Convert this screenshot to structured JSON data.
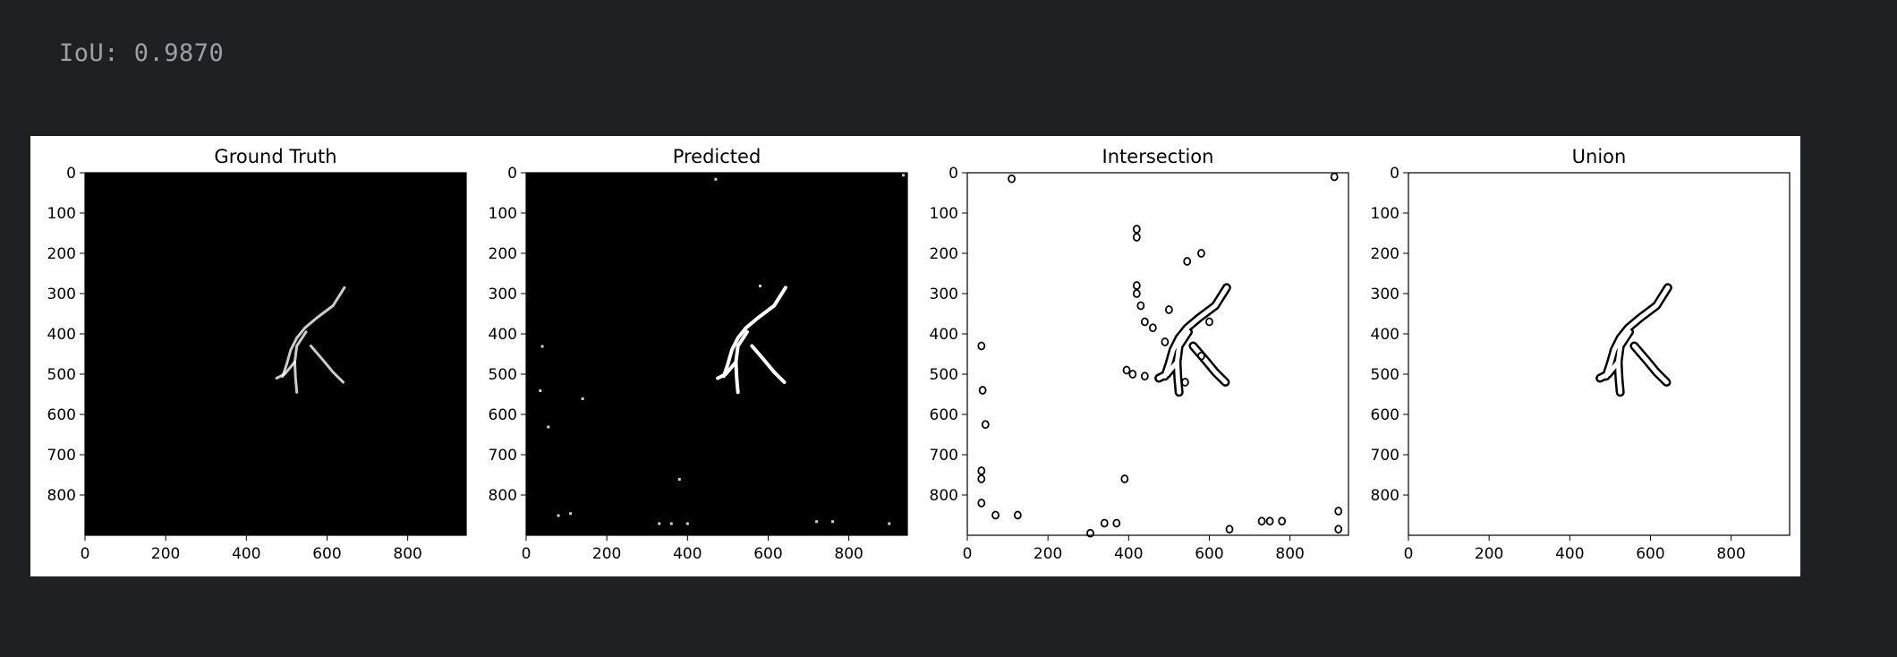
{
  "output": {
    "iou_text": "IoU: 0.9870"
  },
  "chart_data": [
    {
      "type": "image",
      "title": "Ground Truth",
      "xticks": [
        "0",
        "200",
        "400",
        "600",
        "800"
      ],
      "yticks": [
        "0",
        "100",
        "200",
        "300",
        "400",
        "500",
        "600",
        "700",
        "800"
      ],
      "xlim": [
        0,
        945
      ],
      "ylim": [
        900,
        0
      ],
      "colormap": "gray",
      "background": "#000000",
      "foreground": "#ffffff"
    },
    {
      "type": "image",
      "title": "Predicted",
      "xticks": [
        "0",
        "200",
        "400",
        "600",
        "800"
      ],
      "yticks": [
        "0",
        "100",
        "200",
        "300",
        "400",
        "500",
        "600",
        "700",
        "800"
      ],
      "xlim": [
        0,
        945
      ],
      "ylim": [
        900,
        0
      ],
      "colormap": "gray",
      "background": "#000000",
      "foreground": "#ffffff"
    },
    {
      "type": "image",
      "title": "Intersection",
      "xticks": [
        "0",
        "200",
        "400",
        "600",
        "800"
      ],
      "yticks": [
        "0",
        "100",
        "200",
        "300",
        "400",
        "500",
        "600",
        "700",
        "800"
      ],
      "xlim": [
        0,
        945
      ],
      "ylim": [
        900,
        0
      ],
      "colormap": "gray_contour",
      "background": "#ffffff",
      "foreground": "#000000"
    },
    {
      "type": "image",
      "title": "Union",
      "xticks": [
        "0",
        "200",
        "400",
        "600",
        "800"
      ],
      "yticks": [
        "0",
        "100",
        "200",
        "300",
        "400",
        "500",
        "600",
        "700",
        "800"
      ],
      "xlim": [
        0,
        945
      ],
      "ylim": [
        900,
        0
      ],
      "colormap": "gray_contour",
      "background": "#ffffff",
      "foreground": "#000000"
    }
  ]
}
